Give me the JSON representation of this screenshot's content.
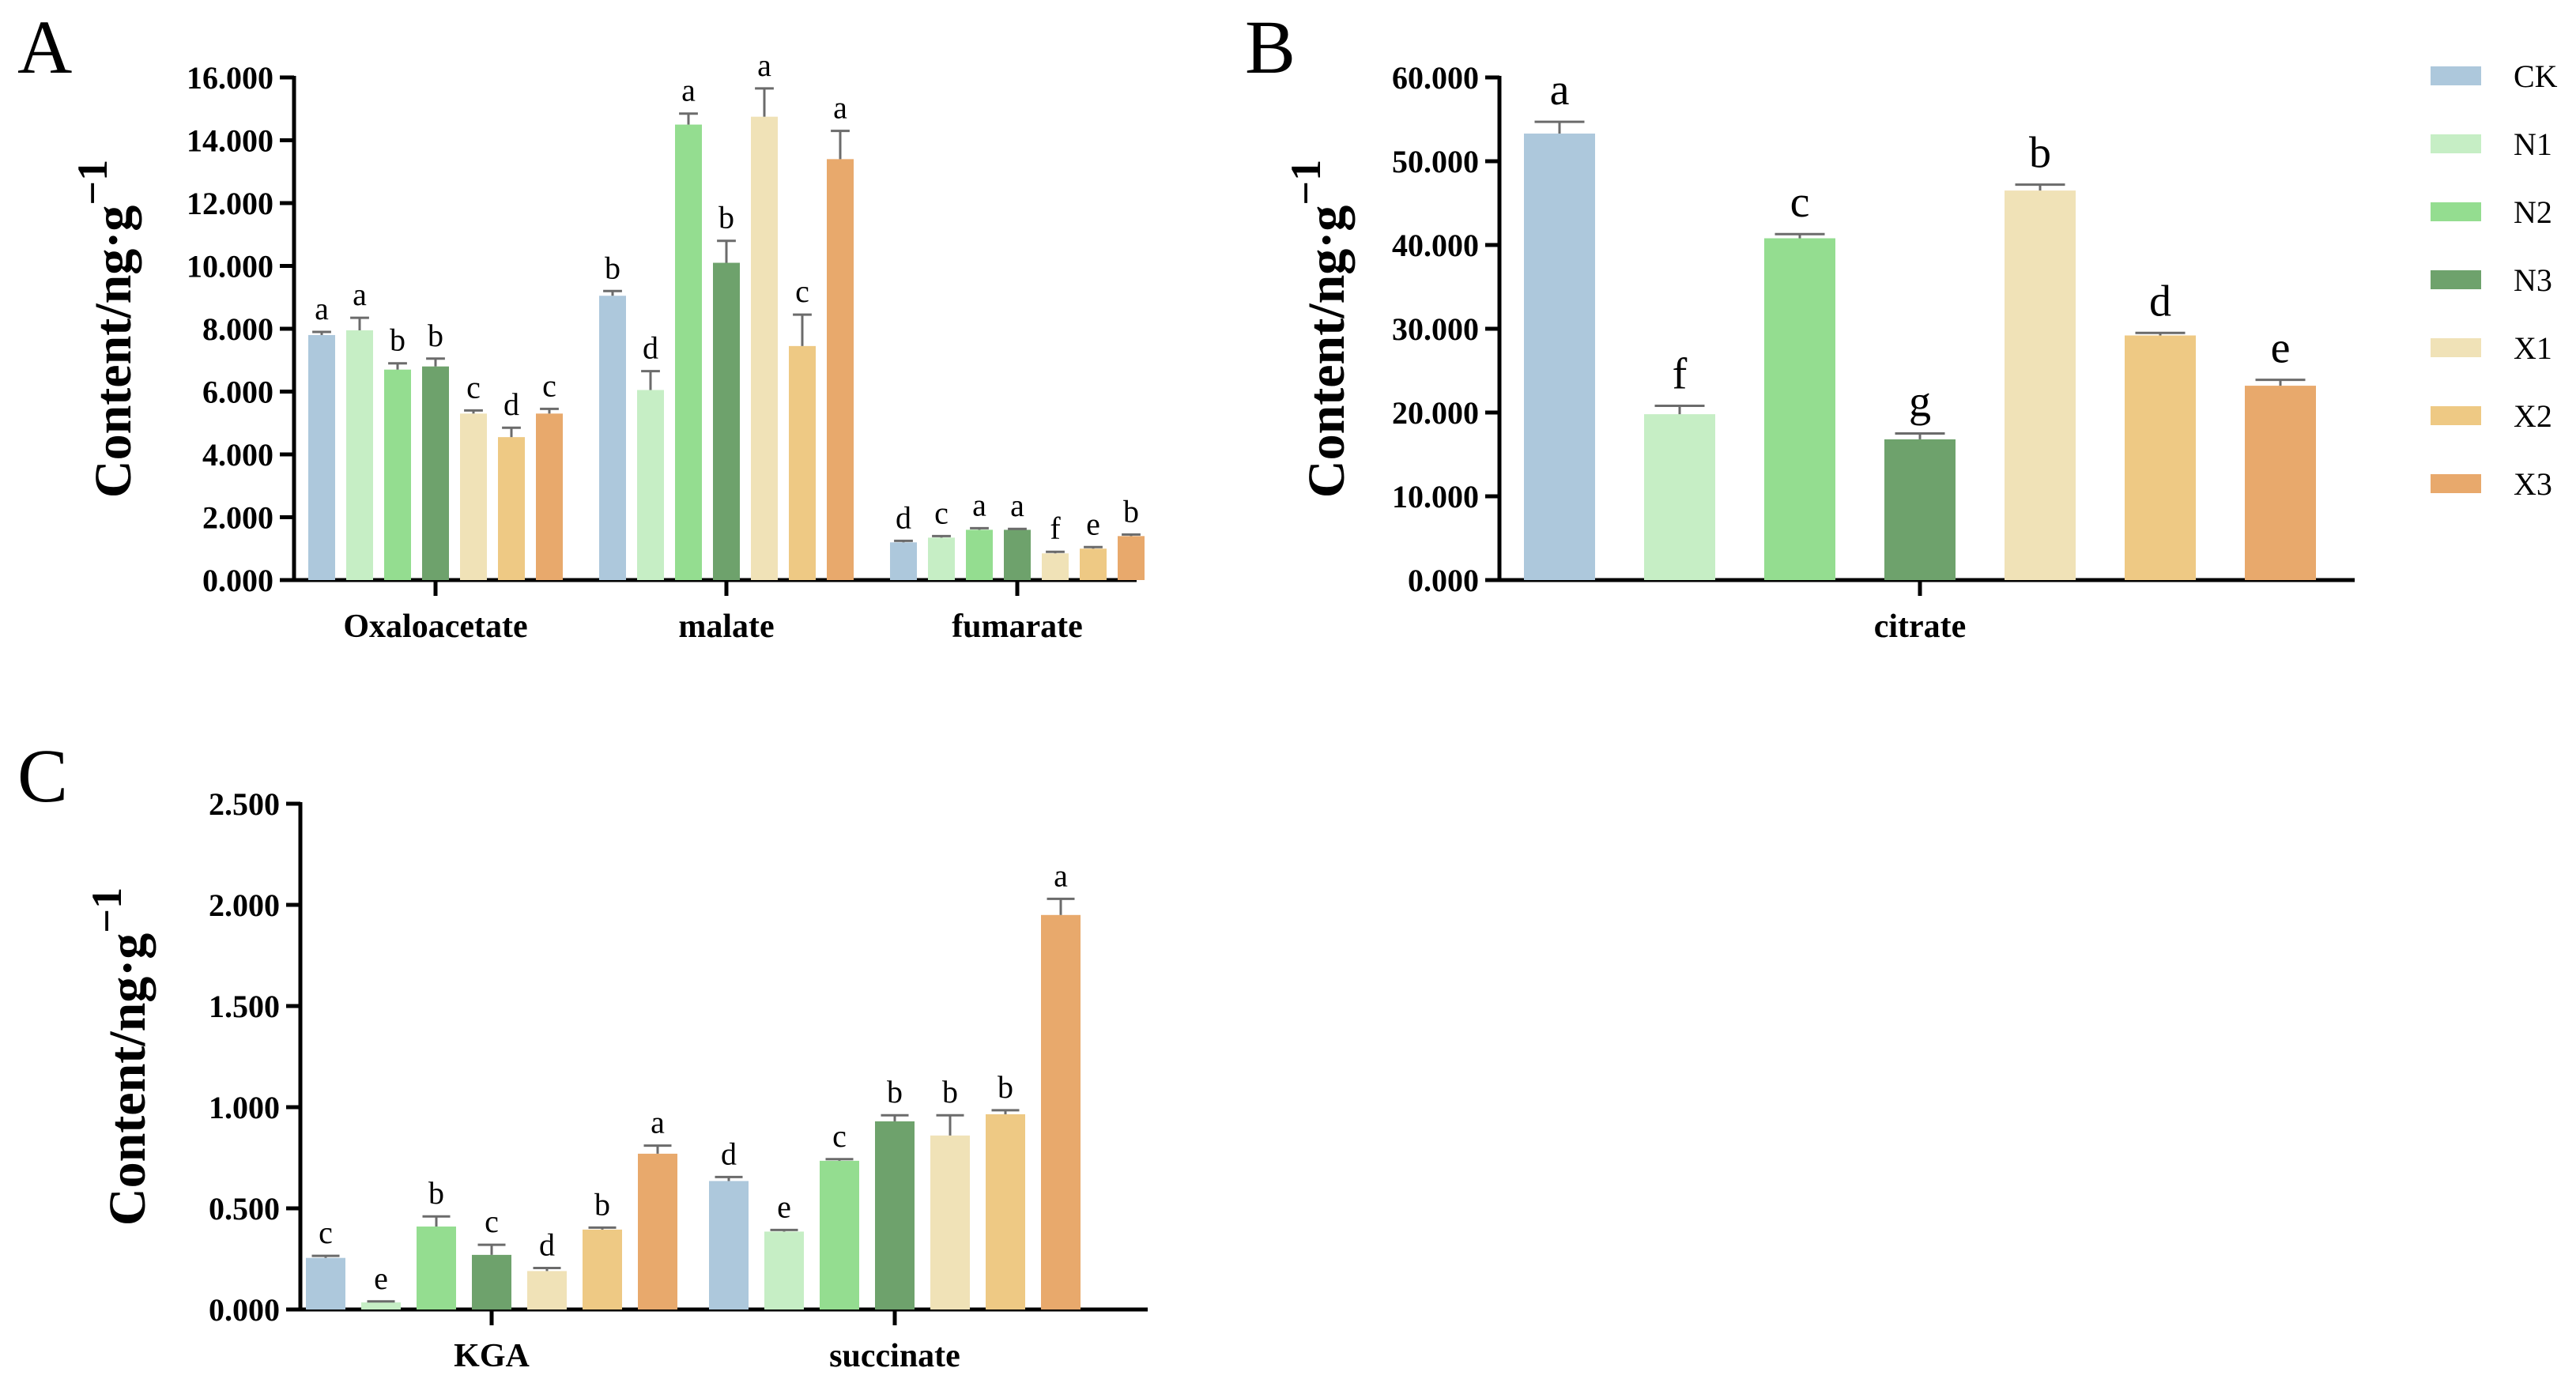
{
  "figure_title": "",
  "groups": [
    "CK",
    "N1",
    "N2",
    "N3",
    "X1",
    "X2",
    "X3"
  ],
  "colors": {
    "CK": "#adc8dc",
    "N1": "#c6eec5",
    "N2": "#94dd90",
    "N3": "#6ea26c",
    "X1": "#f0e2b7",
    "X2": "#eec984",
    "X3": "#e8a96c",
    "axis": "#000000",
    "error": "#6b6b6b"
  },
  "chart_data": [
    {
      "panel": "A",
      "type": "bar",
      "categories": [
        "Oxaloacetate",
        "malate",
        "fumarate"
      ],
      "ylabel": "Content/ng·g",
      "ylabel_sup": "−1",
      "ylim": [
        0,
        16
      ],
      "yticks": [
        "0.000",
        "2.000",
        "4.000",
        "6.000",
        "8.000",
        "10.000",
        "12.000",
        "14.000",
        "16.000"
      ],
      "series": [
        {
          "name": "CK",
          "values": [
            7.8,
            9.05,
            1.2
          ],
          "errors": [
            0.1,
            0.15,
            0.05
          ],
          "letters": [
            "a",
            "b",
            "d"
          ]
        },
        {
          "name": "N1",
          "values": [
            7.95,
            6.05,
            1.35
          ],
          "errors": [
            0.4,
            0.6,
            0.05
          ],
          "letters": [
            "a",
            "d",
            "c"
          ]
        },
        {
          "name": "N2",
          "values": [
            6.7,
            14.5,
            1.6
          ],
          "errors": [
            0.2,
            0.35,
            0.05
          ],
          "letters": [
            "b",
            "a",
            "a"
          ]
        },
        {
          "name": "N3",
          "values": [
            6.8,
            10.1,
            1.6
          ],
          "errors": [
            0.25,
            0.7,
            0.03
          ],
          "letters": [
            "b",
            "b",
            "a"
          ]
        },
        {
          "name": "X1",
          "values": [
            5.3,
            14.75,
            0.85
          ],
          "errors": [
            0.1,
            0.9,
            0.05
          ],
          "letters": [
            "c",
            "a",
            "f"
          ]
        },
        {
          "name": "X2",
          "values": [
            4.55,
            7.45,
            1.0
          ],
          "errors": [
            0.3,
            1.0,
            0.05
          ],
          "letters": [
            "d",
            "c",
            "e"
          ]
        },
        {
          "name": "X3",
          "values": [
            5.3,
            13.4,
            1.4
          ],
          "errors": [
            0.15,
            0.9,
            0.05
          ],
          "letters": [
            "c",
            "a",
            "b"
          ]
        }
      ]
    },
    {
      "panel": "B",
      "type": "bar",
      "categories": [
        "citrate"
      ],
      "ylabel": "Content/ng·g",
      "ylabel_sup": "−1",
      "ylim": [
        0,
        60
      ],
      "yticks": [
        "0.000",
        "10.000",
        "20.000",
        "30.000",
        "40.000",
        "50.000",
        "60.000"
      ],
      "series": [
        {
          "name": "CK",
          "values": [
            53.3
          ],
          "errors": [
            1.4
          ],
          "letters": [
            "a"
          ]
        },
        {
          "name": "N1",
          "values": [
            19.8
          ],
          "errors": [
            1.0
          ],
          "letters": [
            "f"
          ]
        },
        {
          "name": "N2",
          "values": [
            40.8
          ],
          "errors": [
            0.5
          ],
          "letters": [
            "c"
          ]
        },
        {
          "name": "N3",
          "values": [
            16.8
          ],
          "errors": [
            0.7
          ],
          "letters": [
            "g"
          ]
        },
        {
          "name": "X1",
          "values": [
            46.5
          ],
          "errors": [
            0.7
          ],
          "letters": [
            "b"
          ]
        },
        {
          "name": "X2",
          "values": [
            29.2
          ],
          "errors": [
            0.3
          ],
          "letters": [
            "d"
          ]
        },
        {
          "name": "X3",
          "values": [
            23.2
          ],
          "errors": [
            0.7
          ],
          "letters": [
            "e"
          ]
        }
      ]
    },
    {
      "panel": "C",
      "type": "bar",
      "categories": [
        "KGA",
        "succinate"
      ],
      "ylabel": "Content/ng·g",
      "ylabel_sup": "−1",
      "ylim": [
        0,
        2.5
      ],
      "yticks": [
        "0.000",
        "0.500",
        "1.000",
        "1.500",
        "2.000",
        "2.500"
      ],
      "series": [
        {
          "name": "CK",
          "values": [
            0.255,
            0.635
          ],
          "errors": [
            0.01,
            0.02
          ],
          "letters": [
            "c",
            "d"
          ]
        },
        {
          "name": "N1",
          "values": [
            0.035,
            0.385
          ],
          "errors": [
            0.005,
            0.008
          ],
          "letters": [
            "e",
            "e"
          ]
        },
        {
          "name": "N2",
          "values": [
            0.41,
            0.735
          ],
          "errors": [
            0.05,
            0.008
          ],
          "letters": [
            "b",
            "c"
          ]
        },
        {
          "name": "N3",
          "values": [
            0.27,
            0.93
          ],
          "errors": [
            0.05,
            0.03
          ],
          "letters": [
            "c",
            "b"
          ]
        },
        {
          "name": "X1",
          "values": [
            0.19,
            0.86
          ],
          "errors": [
            0.015,
            0.1
          ],
          "letters": [
            "d",
            "b"
          ]
        },
        {
          "name": "X2",
          "values": [
            0.395,
            0.965
          ],
          "errors": [
            0.01,
            0.02
          ],
          "letters": [
            "b",
            "b"
          ]
        },
        {
          "name": "X3",
          "values": [
            0.77,
            1.95
          ],
          "errors": [
            0.04,
            0.08
          ],
          "letters": [
            "a",
            "a"
          ]
        }
      ]
    }
  ],
  "legend": {
    "entries": [
      "CK",
      "N1",
      "N2",
      "N3",
      "X1",
      "X2",
      "X3"
    ]
  }
}
